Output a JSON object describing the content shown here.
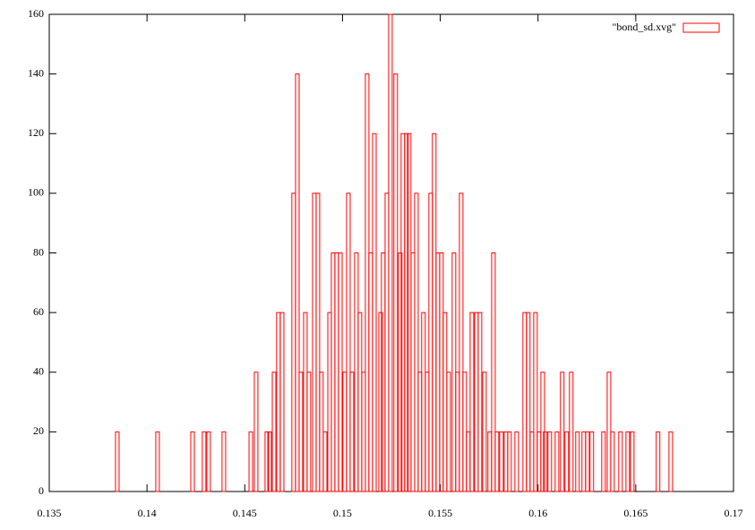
{
  "chart_data": {
    "type": "bar",
    "series": [
      {
        "name": "\"bond_sd.xvg\"",
        "color": "#ff0000",
        "x": [
          0.13848,
          0.14054,
          0.14233,
          0.14292,
          0.14315,
          0.14393,
          0.14531,
          0.14558,
          0.14613,
          0.14627,
          0.1465,
          0.14672,
          0.14691,
          0.1475,
          0.14769,
          0.14787,
          0.1481,
          0.14828,
          0.14856,
          0.14874,
          0.14892,
          0.14911,
          0.14934,
          0.14952,
          0.1497,
          0.14989,
          0.15011,
          0.1503,
          0.15048,
          0.15071,
          0.15089,
          0.15108,
          0.15126,
          0.15144,
          0.15163,
          0.15195,
          0.15208,
          0.15227,
          0.15245,
          0.15272,
          0.15295,
          0.15309,
          0.15327,
          0.15341,
          0.1536,
          0.15378,
          0.15396,
          0.15414,
          0.15433,
          0.15451,
          0.15469,
          0.15488,
          0.15506,
          0.15524,
          0.15543,
          0.1557,
          0.15588,
          0.15607,
          0.15625,
          0.15643,
          0.15662,
          0.15685,
          0.15703,
          0.15726,
          0.15753,
          0.15772,
          0.1579,
          0.15813,
          0.15836,
          0.15854,
          0.15891,
          0.15932,
          0.1595,
          0.15969,
          0.15987,
          0.16005,
          0.16024,
          0.16037,
          0.1606,
          0.16097,
          0.16124,
          0.16147,
          0.1617,
          0.16202,
          0.16234,
          0.16253,
          0.16275,
          0.16335,
          0.16363,
          0.16381,
          0.16422,
          0.16459,
          0.16482,
          0.16614,
          0.16679
        ],
        "values": [
          20,
          20,
          20,
          20,
          20,
          20,
          20,
          40,
          20,
          20,
          40,
          60,
          60,
          100,
          140,
          40,
          60,
          40,
          100,
          100,
          40,
          20,
          60,
          80,
          80,
          80,
          40,
          100,
          40,
          80,
          60,
          40,
          140,
          80,
          120,
          60,
          80,
          100,
          160,
          140,
          80,
          120,
          120,
          120,
          80,
          100,
          40,
          60,
          40,
          100,
          120,
          80,
          80,
          60,
          40,
          80,
          40,
          100,
          40,
          20,
          60,
          60,
          60,
          40,
          20,
          80,
          20,
          20,
          20,
          20,
          20,
          60,
          60,
          20,
          60,
          20,
          40,
          20,
          20,
          20,
          40,
          20,
          40,
          20,
          20,
          20,
          20,
          20,
          40,
          20,
          20,
          20,
          20,
          20,
          20
        ]
      }
    ],
    "xlim": [
      0.135,
      0.17
    ],
    "xticks": [
      0.135,
      0.14,
      0.145,
      0.15,
      0.155,
      0.16,
      0.165,
      0.17
    ],
    "ylim": [
      0,
      160
    ],
    "yticks": [
      0,
      20,
      40,
      60,
      80,
      100,
      120,
      140,
      160
    ],
    "grid": false,
    "legend": "top-right"
  }
}
